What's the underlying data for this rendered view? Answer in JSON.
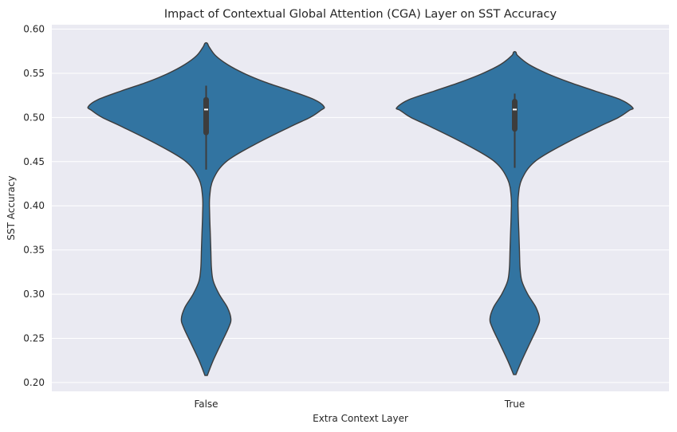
{
  "chart_data": {
    "type": "violin",
    "title": "Impact of Contextual Global Attention (CGA) Layer on SST Accuracy",
    "xlabel": "Extra Context Layer",
    "ylabel": "SST Accuracy",
    "categories": [
      "False",
      "True"
    ],
    "ylim": [
      0.19,
      0.605
    ],
    "yticks": [
      0.2,
      0.25,
      0.3,
      0.35,
      0.4,
      0.45,
      0.5,
      0.55,
      0.6
    ],
    "grid": true,
    "colors": {
      "violin_fill": "#3274a1",
      "violin_edge": "#3d3d3d",
      "box": "#3d3d3d",
      "median": "#ffffff",
      "axes_bg": "#eaeaf2",
      "grid": "#ffffff"
    },
    "violins": [
      {
        "category": "False",
        "min": 0.208,
        "max": 0.584,
        "median": 0.509,
        "q1": 0.483,
        "q3": 0.52,
        "whisker_low": 0.441,
        "whisker_high": 0.536,
        "density": [
          [
            0.208,
            0.01
          ],
          [
            0.225,
            0.06
          ],
          [
            0.245,
            0.13
          ],
          [
            0.262,
            0.19
          ],
          [
            0.272,
            0.21
          ],
          [
            0.285,
            0.18
          ],
          [
            0.3,
            0.11
          ],
          [
            0.315,
            0.06
          ],
          [
            0.33,
            0.045
          ],
          [
            0.35,
            0.04
          ],
          [
            0.37,
            0.035
          ],
          [
            0.39,
            0.03
          ],
          [
            0.41,
            0.03
          ],
          [
            0.43,
            0.06
          ],
          [
            0.45,
            0.17
          ],
          [
            0.47,
            0.42
          ],
          [
            0.49,
            0.72
          ],
          [
            0.5,
            0.88
          ],
          [
            0.508,
            0.97
          ],
          [
            0.512,
            1.0
          ],
          [
            0.52,
            0.92
          ],
          [
            0.53,
            0.72
          ],
          [
            0.54,
            0.5
          ],
          [
            0.55,
            0.32
          ],
          [
            0.56,
            0.18
          ],
          [
            0.57,
            0.08
          ],
          [
            0.58,
            0.025
          ],
          [
            0.584,
            0.01
          ]
        ]
      },
      {
        "category": "True",
        "min": 0.209,
        "max": 0.574,
        "median": 0.509,
        "q1": 0.487,
        "q3": 0.518,
        "whisker_low": 0.443,
        "whisker_high": 0.527,
        "density": [
          [
            0.209,
            0.01
          ],
          [
            0.225,
            0.06
          ],
          [
            0.245,
            0.13
          ],
          [
            0.262,
            0.19
          ],
          [
            0.272,
            0.21
          ],
          [
            0.285,
            0.18
          ],
          [
            0.3,
            0.11
          ],
          [
            0.315,
            0.06
          ],
          [
            0.33,
            0.045
          ],
          [
            0.35,
            0.04
          ],
          [
            0.37,
            0.035
          ],
          [
            0.39,
            0.03
          ],
          [
            0.41,
            0.03
          ],
          [
            0.43,
            0.06
          ],
          [
            0.45,
            0.17
          ],
          [
            0.47,
            0.42
          ],
          [
            0.49,
            0.72
          ],
          [
            0.5,
            0.88
          ],
          [
            0.508,
            0.97
          ],
          [
            0.511,
            1.0
          ],
          [
            0.52,
            0.9
          ],
          [
            0.53,
            0.68
          ],
          [
            0.54,
            0.46
          ],
          [
            0.55,
            0.27
          ],
          [
            0.56,
            0.12
          ],
          [
            0.57,
            0.025
          ],
          [
            0.574,
            0.01
          ]
        ]
      }
    ]
  }
}
